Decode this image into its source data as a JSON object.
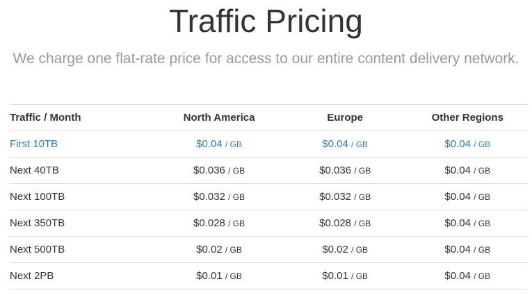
{
  "header": {
    "title": "Traffic Pricing",
    "subtitle": "We charge one flat-rate price for access to our entire content delivery network."
  },
  "colors": {
    "highlight": "#2a7ab8",
    "subtitle": "#999999",
    "text": "#333333",
    "border": "#dddddd"
  },
  "table": {
    "columns": [
      "Traffic / Month",
      "North America",
      "Europe",
      "Other Regions"
    ],
    "unit": "/ GB",
    "rows": [
      {
        "tier": "First 10TB",
        "north_america": "$0.04",
        "europe": "$0.04",
        "other_regions": "$0.04",
        "highlighted": true
      },
      {
        "tier": "Next 40TB",
        "north_america": "$0.036",
        "europe": "$0.036",
        "other_regions": "$0.04",
        "highlighted": false
      },
      {
        "tier": "Next 100TB",
        "north_america": "$0.032",
        "europe": "$0.032",
        "other_regions": "$0.04",
        "highlighted": false
      },
      {
        "tier": "Next 350TB",
        "north_america": "$0.028",
        "europe": "$0.028",
        "other_regions": "$0.04",
        "highlighted": false
      },
      {
        "tier": "Next 500TB",
        "north_america": "$0.02",
        "europe": "$0.02",
        "other_regions": "$0.04",
        "highlighted": false
      },
      {
        "tier": "Next 2PB",
        "north_america": "$0.01",
        "europe": "$0.01",
        "other_regions": "$0.04",
        "highlighted": false
      }
    ]
  }
}
